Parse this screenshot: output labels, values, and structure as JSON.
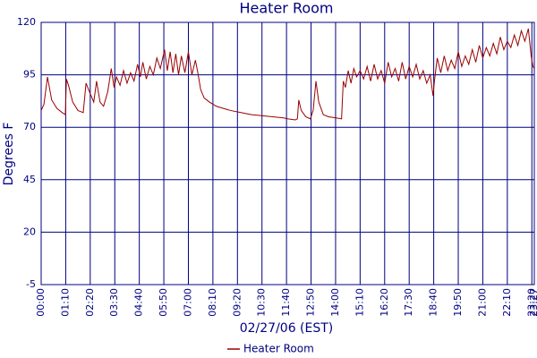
{
  "chart_data": {
    "type": "line",
    "title": "Heater Room",
    "x_label": "02/27/06 (EST)",
    "y_label": "Degrees F",
    "x": [
      0,
      8,
      18,
      30,
      45,
      60,
      69,
      72,
      78,
      90,
      105,
      120,
      128,
      140,
      150,
      158,
      168,
      178,
      190,
      200,
      208,
      215,
      225,
      235,
      245,
      255,
      265,
      275,
      283,
      290,
      300,
      310,
      320,
      330,
      340,
      352,
      360,
      368,
      376,
      384,
      392,
      400,
      410,
      420,
      430,
      440,
      447,
      455,
      465,
      480,
      500,
      520,
      540,
      570,
      600,
      630,
      660,
      690,
      705,
      725,
      731,
      735,
      742,
      755,
      768,
      776,
      784,
      792,
      805,
      820,
      840,
      857,
      862,
      868,
      876,
      884,
      892,
      900,
      910,
      920,
      930,
      940,
      950,
      960,
      970,
      980,
      990,
      1000,
      1010,
      1020,
      1030,
      1040,
      1050,
      1060,
      1070,
      1080,
      1090,
      1100,
      1110,
      1118,
      1122,
      1130,
      1140,
      1150,
      1160,
      1170,
      1180,
      1190,
      1200,
      1210,
      1220,
      1230,
      1240,
      1250,
      1260,
      1270,
      1280,
      1290,
      1300,
      1310,
      1320,
      1330,
      1340,
      1350,
      1360,
      1370,
      1380,
      1390,
      1398,
      1403,
      1407
    ],
    "series": [
      {
        "name": "Heater Room",
        "color": "#990000",
        "values": [
          78,
          81,
          94,
          83,
          79,
          77,
          76,
          93,
          90,
          82,
          78,
          77,
          91,
          86,
          82,
          92,
          82,
          80,
          87,
          98,
          89,
          94,
          90,
          97,
          91,
          96,
          92,
          100,
          94,
          101,
          93,
          99,
          95,
          103,
          98,
          107,
          97,
          106,
          96,
          105,
          95,
          104,
          96,
          106,
          95,
          102,
          96,
          88,
          84,
          82,
          80,
          79,
          78,
          77,
          76,
          75.5,
          75,
          74.5,
          74,
          73.5,
          74,
          83,
          78,
          75,
          74,
          78,
          92,
          82,
          76,
          75,
          74.5,
          74,
          92,
          89,
          97,
          91,
          98,
          94,
          97,
          93,
          99,
          92,
          100,
          93,
          97,
          91,
          101,
          94,
          98,
          92,
          101,
          93,
          99,
          94,
          100,
          93,
          97,
          91,
          95,
          85,
          92,
          103,
          96,
          104,
          97,
          102,
          98,
          106,
          99,
          104,
          100,
          107,
          101,
          109,
          103,
          108,
          104,
          110,
          105,
          113,
          107,
          111,
          108,
          114,
          109,
          116,
          111,
          117,
          104,
          99,
          98
        ]
      }
    ],
    "xlim": [
      0,
      1407
    ],
    "ylim": [
      -5,
      120
    ],
    "xticks": [
      {
        "value": 0,
        "label": "00:00"
      },
      {
        "value": 70,
        "label": "01:10"
      },
      {
        "value": 140,
        "label": "02:20"
      },
      {
        "value": 210,
        "label": "03:30"
      },
      {
        "value": 280,
        "label": "04:40"
      },
      {
        "value": 350,
        "label": "05:50"
      },
      {
        "value": 420,
        "label": "07:00"
      },
      {
        "value": 490,
        "label": "08:10"
      },
      {
        "value": 560,
        "label": "09:20"
      },
      {
        "value": 630,
        "label": "10:30"
      },
      {
        "value": 700,
        "label": "11:40"
      },
      {
        "value": 770,
        "label": "12:50"
      },
      {
        "value": 840,
        "label": "14:00"
      },
      {
        "value": 910,
        "label": "15:10"
      },
      {
        "value": 980,
        "label": "16:20"
      },
      {
        "value": 1050,
        "label": "17:30"
      },
      {
        "value": 1120,
        "label": "18:40"
      },
      {
        "value": 1190,
        "label": "19:50"
      },
      {
        "value": 1260,
        "label": "21:00"
      },
      {
        "value": 1330,
        "label": "22:10"
      },
      {
        "value": 1400,
        "label": "23:20"
      },
      {
        "value": 1407,
        "label": "23:27"
      }
    ],
    "yticks": [
      -5,
      20,
      45,
      70,
      95,
      120
    ],
    "grid": true,
    "legend": "bottom"
  }
}
